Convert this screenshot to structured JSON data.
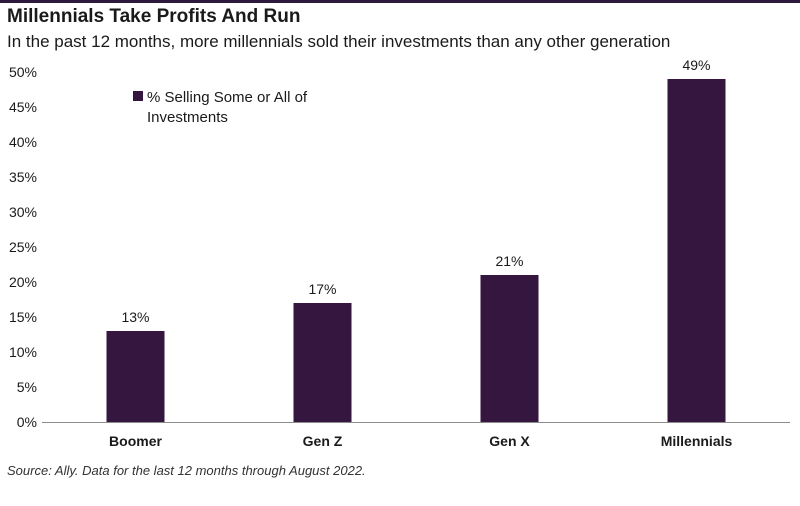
{
  "title": "Millennials Take Profits And Run",
  "subtitle": "In the past 12 months, more millennials sold their investments than any other generation",
  "source": "Source: Ally. Data for the last 12 months through August 2022.",
  "colors": {
    "bar": "#35163f",
    "axis": "#8c8c8c",
    "topbar": "#2f1a3d"
  },
  "chart_data": {
    "type": "bar",
    "categories": [
      "Boomer",
      "Gen Z",
      "Gen X",
      "Millennials"
    ],
    "series": [
      {
        "name": "% Selling Some or All of Investments",
        "values": [
          13,
          17,
          21,
          49
        ]
      }
    ],
    "data_labels": [
      "13%",
      "17%",
      "21%",
      "49%"
    ],
    "legend": {
      "lines": [
        "% Selling Some or All of",
        "Investments"
      ],
      "placement": "top-left"
    },
    "ylim": [
      0,
      50
    ],
    "yticks": [
      0,
      5,
      10,
      15,
      20,
      25,
      30,
      35,
      40,
      45,
      50
    ],
    "ytick_labels": [
      "0%",
      "5%",
      "10%",
      "15%",
      "20%",
      "25%",
      "30%",
      "35%",
      "40%",
      "45%",
      "50%"
    ],
    "grid": false
  }
}
